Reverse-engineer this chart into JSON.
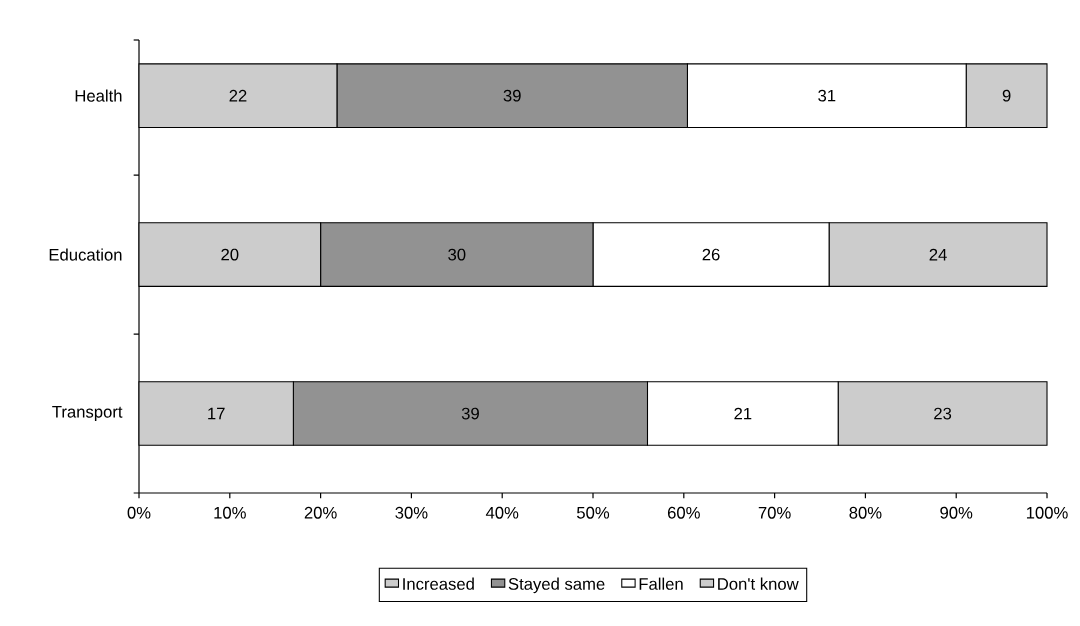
{
  "chart_data": {
    "type": "bar",
    "orientation": "horizontal",
    "stacked": true,
    "categories": [
      "Health",
      "Education",
      "Transport"
    ],
    "series": [
      {
        "name": "Increased",
        "color": "#cccccc",
        "values": [
          21.8,
          20,
          17
        ],
        "value_labels": [
          "22",
          "20",
          "17"
        ]
      },
      {
        "name": "Stayed same",
        "color": "#929292",
        "values": [
          38.6,
          30,
          39
        ],
        "value_labels": [
          "39",
          "30",
          "39"
        ]
      },
      {
        "name": "Fallen",
        "color": "#ffffff",
        "values": [
          30.7,
          26,
          21
        ],
        "value_labels": [
          "31",
          "26",
          "21"
        ]
      },
      {
        "name": "Don't know",
        "color": "#cccccc",
        "values": [
          8.9,
          24,
          23
        ],
        "value_labels": [
          "9",
          "24",
          "23"
        ]
      }
    ],
    "xlim": [
      0,
      100
    ],
    "xticks": [
      {
        "value": 0,
        "label": "0%"
      },
      {
        "value": 10,
        "label": "10%"
      },
      {
        "value": 20,
        "label": "20%"
      },
      {
        "value": 30,
        "label": "30%"
      },
      {
        "value": 40,
        "label": "40%"
      },
      {
        "value": 50,
        "label": "50%"
      },
      {
        "value": 60,
        "label": "60%"
      },
      {
        "value": 70,
        "label": "70%"
      },
      {
        "value": 80,
        "label": "80%"
      },
      {
        "value": 90,
        "label": "90%"
      },
      {
        "value": 100,
        "label": "100%"
      }
    ],
    "legend": "bottom"
  }
}
